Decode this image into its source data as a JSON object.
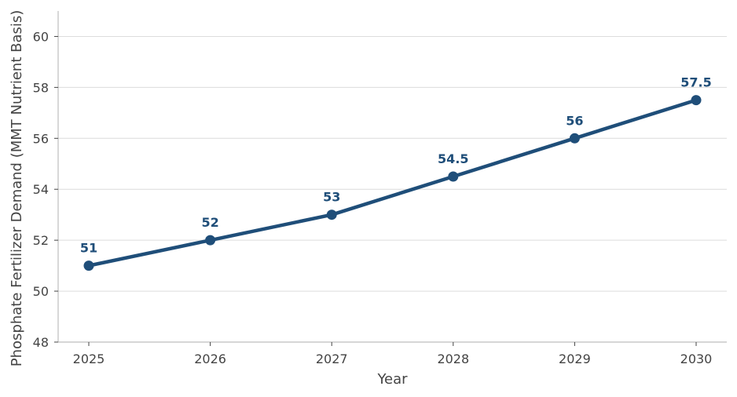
{
  "chart_data": {
    "type": "line",
    "title": "",
    "xlabel": "Year",
    "ylabel": "Phosphate Fertilizer Demand (MMT Nutrient Basis)",
    "x": [
      2025,
      2026,
      2027,
      2028,
      2029,
      2030
    ],
    "x_tick_labels": [
      "2025",
      "2026",
      "2027",
      "2028",
      "2029",
      "2030"
    ],
    "series": [
      {
        "values": [
          51,
          52,
          53,
          54.5,
          56,
          57.5
        ],
        "data_labels": [
          "51",
          "52",
          "53",
          "54.5",
          "56",
          "57.5"
        ],
        "color": "#1f4e79",
        "marker": "circle"
      }
    ],
    "ylim": [
      48,
      61
    ],
    "y_ticks": [
      48,
      50,
      52,
      54,
      56,
      58,
      60
    ],
    "y_tick_labels": [
      "48",
      "50",
      "52",
      "54",
      "56",
      "58",
      "60"
    ],
    "grid": "horizontal",
    "legend": "none"
  }
}
